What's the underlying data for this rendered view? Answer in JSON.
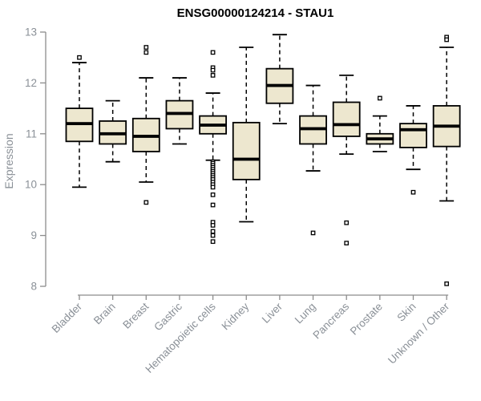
{
  "chart_data": {
    "type": "boxplot",
    "title": "ENSG00000124214 - STAU1",
    "ylabel": "Expression",
    "ylim": [
      8,
      13
    ],
    "yticks": [
      8,
      9,
      10,
      11,
      12,
      13
    ],
    "grid": false,
    "legend": "none",
    "categories": [
      "Bladder",
      "Brain",
      "Breast",
      "Gastric",
      "Hematopoietic cells",
      "Kidney",
      "Liver",
      "Lung",
      "Pancreas",
      "Prostate",
      "Skin",
      "Unknown / Other"
    ],
    "series": [
      {
        "category": "Bladder",
        "whisker_low": 9.95,
        "q1": 10.85,
        "median": 11.2,
        "q3": 11.5,
        "whisker_high": 12.4,
        "outliers": [
          12.5
        ]
      },
      {
        "category": "Brain",
        "whisker_low": 10.45,
        "q1": 10.8,
        "median": 11.0,
        "q3": 11.25,
        "whisker_high": 11.65,
        "outliers": []
      },
      {
        "category": "Breast",
        "whisker_low": 10.05,
        "q1": 10.65,
        "median": 10.95,
        "q3": 11.3,
        "whisker_high": 12.1,
        "outliers": [
          12.7,
          12.6,
          9.65
        ]
      },
      {
        "category": "Gastric",
        "whisker_low": 10.8,
        "q1": 11.1,
        "median": 11.4,
        "q3": 11.65,
        "whisker_high": 12.1,
        "outliers": []
      },
      {
        "category": "Hematopoietic cells",
        "whisker_low": 10.48,
        "q1": 11.0,
        "median": 11.17,
        "q3": 11.35,
        "whisker_high": 11.8,
        "outliers": [
          12.6,
          12.3,
          12.25,
          12.15,
          10.45,
          10.42,
          10.38,
          10.34,
          10.3,
          10.26,
          10.22,
          10.18,
          10.14,
          10.1,
          10.05,
          10.0,
          9.95,
          9.8,
          9.6,
          9.26,
          9.2,
          9.08,
          9.0,
          8.88
        ]
      },
      {
        "category": "Kidney",
        "whisker_low": 9.27,
        "q1": 10.1,
        "median": 10.5,
        "q3": 11.22,
        "whisker_high": 12.7,
        "outliers": []
      },
      {
        "category": "Liver",
        "whisker_low": 11.2,
        "q1": 11.6,
        "median": 11.95,
        "q3": 12.28,
        "whisker_high": 12.95,
        "outliers": []
      },
      {
        "category": "Lung",
        "whisker_low": 10.27,
        "q1": 10.8,
        "median": 11.1,
        "q3": 11.35,
        "whisker_high": 11.95,
        "outliers": [
          9.05
        ]
      },
      {
        "category": "Pancreas",
        "whisker_low": 10.6,
        "q1": 10.95,
        "median": 11.18,
        "q3": 11.62,
        "whisker_high": 12.15,
        "outliers": [
          9.25,
          8.85
        ]
      },
      {
        "category": "Prostate",
        "whisker_low": 10.65,
        "q1": 10.8,
        "median": 10.9,
        "q3": 11.0,
        "whisker_high": 11.35,
        "outliers": [
          11.7
        ]
      },
      {
        "category": "Skin",
        "whisker_low": 10.3,
        "q1": 10.73,
        "median": 11.08,
        "q3": 11.2,
        "whisker_high": 11.55,
        "outliers": [
          9.85
        ]
      },
      {
        "category": "Unknown / Other",
        "whisker_low": 9.68,
        "q1": 10.75,
        "median": 11.15,
        "q3": 11.55,
        "whisker_high": 12.7,
        "outliers": [
          12.9,
          12.85,
          8.05
        ]
      }
    ],
    "colors": {
      "box_fill": "#ede7cf",
      "box_border": "#000000",
      "median": "#000000",
      "whisker": "#000000",
      "axis": "#8c8c8c",
      "tick_label": "#8a9097",
      "title": "#000000",
      "background": "#ffffff"
    }
  }
}
